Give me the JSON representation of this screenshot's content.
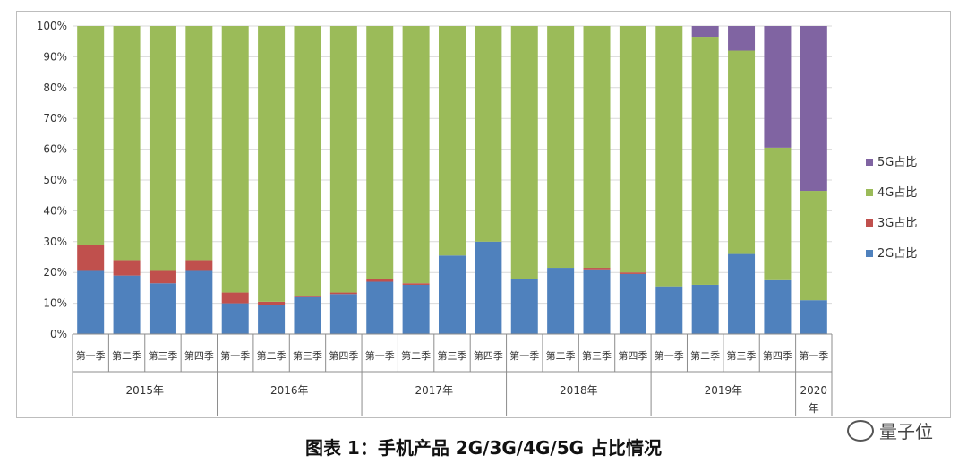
{
  "chart_data": {
    "type": "bar",
    "stacked": true,
    "ylim": [
      0,
      100
    ],
    "y_ticks": [
      "0%",
      "10%",
      "20%",
      "30%",
      "40%",
      "50%",
      "60%",
      "70%",
      "80%",
      "90%",
      "100%"
    ],
    "grid": true,
    "legend_position": "right",
    "categories": [
      "第一季",
      "第二季",
      "第三季",
      "第四季",
      "第一季",
      "第二季",
      "第三季",
      "第四季",
      "第一季",
      "第二季",
      "第三季",
      "第四季",
      "第一季",
      "第二季",
      "第三季",
      "第四季",
      "第一季",
      "第二季",
      "第三季",
      "第四季",
      "第一季"
    ],
    "groups": [
      {
        "label": "2015年",
        "count": 4
      },
      {
        "label": "2016年",
        "count": 4
      },
      {
        "label": "2017年",
        "count": 4
      },
      {
        "label": "2018年",
        "count": 4
      },
      {
        "label": "2019年",
        "count": 4
      },
      {
        "label": "2020\n年",
        "count": 1
      }
    ],
    "series": [
      {
        "name": "2G占比",
        "color": "#4f81bd",
        "values": [
          20.5,
          19,
          16.5,
          20.5,
          10,
          9.5,
          12,
          13,
          17,
          16,
          25.5,
          30,
          18,
          21.5,
          21,
          19.5,
          15.5,
          16,
          26,
          17.5,
          11
        ]
      },
      {
        "name": "3G占比",
        "color": "#c0504d",
        "values": [
          8.5,
          5,
          4,
          3.5,
          3.5,
          1,
          0.5,
          0.5,
          1,
          0.5,
          0,
          0,
          0,
          0,
          0.5,
          0.5,
          0,
          0,
          0,
          0,
          0
        ]
      },
      {
        "name": "4G占比",
        "color": "#9bbb59",
        "values": [
          71,
          76,
          79.5,
          76,
          86.5,
          89.5,
          87.5,
          86.5,
          82,
          83.5,
          74.5,
          70,
          82,
          78.5,
          78.5,
          80,
          84.5,
          80.5,
          66,
          43,
          35.5
        ]
      },
      {
        "name": "5G占比",
        "color": "#8064a2",
        "values": [
          0,
          0,
          0,
          0,
          0,
          0,
          0,
          0,
          0,
          0,
          0,
          0,
          0,
          0,
          0,
          0,
          0,
          3.5,
          8,
          39.5,
          53.5
        ]
      }
    ]
  },
  "caption": "图表 1：手机产品 2G/3G/4G/5G 占比情况",
  "watermark": "量子位",
  "colors": {
    "grid": "#d9d9d9",
    "axis": "#8c8c8c",
    "text": "#333333"
  }
}
